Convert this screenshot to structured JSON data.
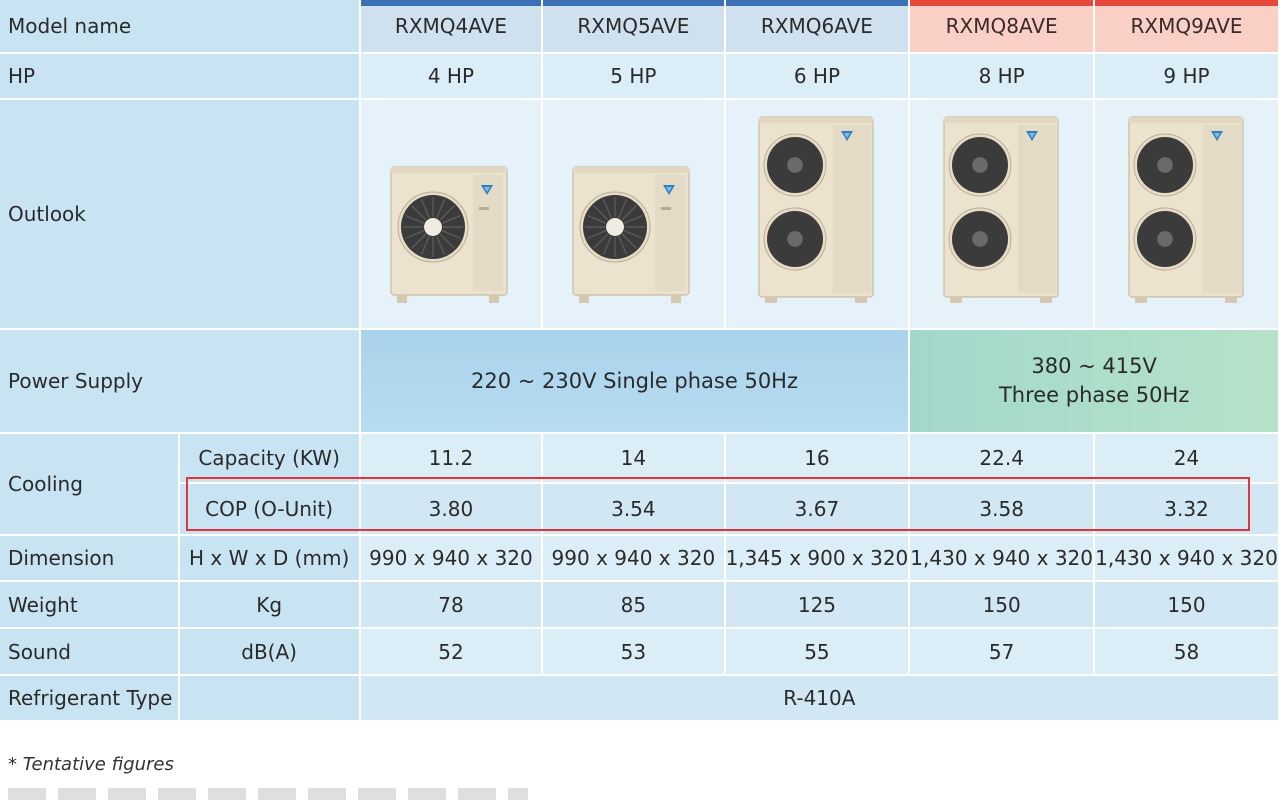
{
  "models": [
    {
      "name": "RXMQ4AVE",
      "hp": "4 HP",
      "capacity": "11.2",
      "cop": "3.80",
      "dimension": "990 x 940 x 320",
      "weight": "78",
      "sound": "52",
      "tone": "blue",
      "fans": 1
    },
    {
      "name": "RXMQ5AVE",
      "hp": "5 HP",
      "capacity": "14",
      "cop": "3.54",
      "dimension": "990 x 940 x 320",
      "weight": "85",
      "sound": "53",
      "tone": "blue",
      "fans": 1
    },
    {
      "name": "RXMQ6AVE",
      "hp": "6 HP",
      "capacity": "16",
      "cop": "3.67",
      "dimension": "1,345 x 900 x 320",
      "weight": "125",
      "sound": "55",
      "tone": "blue",
      "fans": 2
    },
    {
      "name": "RXMQ8AVE",
      "hp": "8 HP",
      "capacity": "22.4",
      "cop": "3.58",
      "dimension": "1,430 x 940 x 320",
      "weight": "150",
      "sound": "57",
      "tone": "red",
      "fans": 2
    },
    {
      "name": "RXMQ9AVE",
      "hp": "9 HP",
      "capacity": "24",
      "cop": "3.32",
      "dimension": "1,430 x 940 x 320",
      "weight": "150",
      "sound": "58",
      "tone": "red",
      "fans": 2
    }
  ],
  "labels": {
    "model_name": "Model name",
    "hp": "HP",
    "outlook": "Outlook",
    "power_supply": "Power Supply",
    "cooling": "Cooling",
    "capacity": "Capacity (KW)",
    "cop": "COP (O-Unit)",
    "dimension": "Dimension",
    "dimension_unit": "H x W x D (mm)",
    "weight": "Weight",
    "weight_unit": "Kg",
    "sound": "Sound",
    "sound_unit": "dB(A)",
    "refrigerant": "Refrigerant Type"
  },
  "power_supply": {
    "single": "220 ~ 230V Single phase 50Hz",
    "three_line1": "380 ~ 415V",
    "three_line2": "Three phase 50Hz"
  },
  "refrigerant_value": "R-410A",
  "footnote": "* Tentative figures",
  "colors": {
    "header_blue": "#3c6fb4",
    "header_red": "#e5483a",
    "highlight_box": "#e0353d"
  }
}
